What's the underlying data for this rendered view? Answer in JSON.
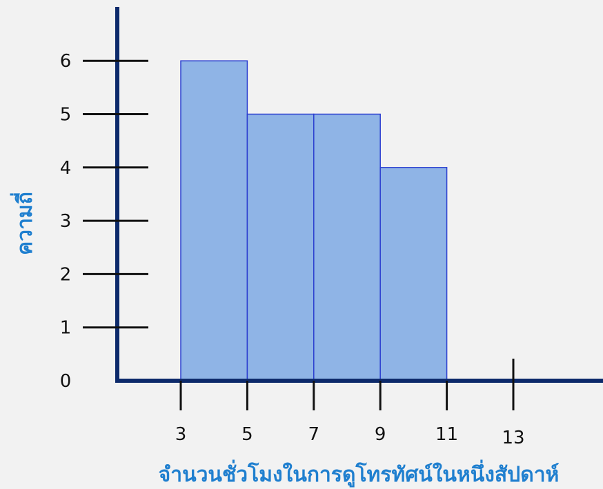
{
  "chart_data": {
    "type": "bar",
    "title": "",
    "xlabel": "จำนวนชั่วโมงในการดูโทรทัศน์ในหนึ่งสัปดาห์",
    "ylabel": "ความถี่",
    "x_ticks": [
      3,
      5,
      7,
      9,
      11,
      13
    ],
    "y_ticks": [
      0,
      1,
      2,
      3,
      4,
      5,
      6
    ],
    "bins": [
      {
        "start": 3,
        "end": 5,
        "value": 6
      },
      {
        "start": 5,
        "end": 7,
        "value": 5
      },
      {
        "start": 7,
        "end": 9,
        "value": 5
      },
      {
        "start": 9,
        "end": 11,
        "value": 4
      }
    ],
    "ylim": [
      0,
      6
    ],
    "grid": false,
    "colors": {
      "bar_fill": "#8fb4e6",
      "bar_edge": "#2c3fd0",
      "axis": "#0d2a6b",
      "tick": "#111111",
      "label": "#1f7fcf"
    }
  }
}
